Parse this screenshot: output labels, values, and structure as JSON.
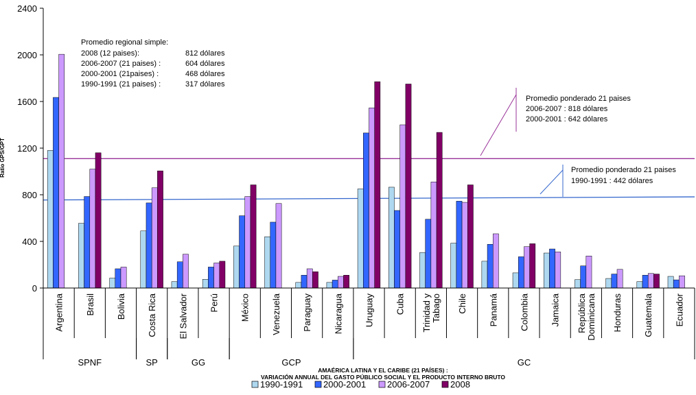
{
  "chart_data": {
    "type": "bar",
    "ylabel": "Ratio GPS/GPT",
    "ylim": [
      0,
      2400
    ],
    "yticks": [
      0,
      400,
      800,
      1200,
      1600,
      2000,
      2400
    ],
    "grid": false,
    "legend_position": "bottom-center",
    "categories": [
      "Argentina",
      "Brasil",
      "Bolivia",
      "Costa Rica",
      "El Salvador",
      "Perú",
      "México",
      "Venezuela",
      "Paraguay",
      "Nicaragua",
      "Uruguay",
      "Cuba",
      "Trinidad y Tabago",
      "Chile",
      "Panamá",
      "Colombia",
      "Jamaica",
      "República Dominicana",
      "Honduras",
      "Guatemala",
      "Ecuador"
    ],
    "series": [
      {
        "name": "1990-1991",
        "color": "#aed8f0",
        "values": [
          1180,
          555,
          85,
          490,
          55,
          75,
          360,
          440,
          48,
          48,
          850,
          865,
          305,
          385,
          230,
          130,
          300,
          72,
          82,
          55,
          100
        ]
      },
      {
        "name": "2000-2001",
        "color": "#3366ff",
        "values": [
          1635,
          785,
          165,
          730,
          225,
          180,
          620,
          565,
          110,
          68,
          1330,
          665,
          590,
          745,
          375,
          268,
          335,
          190,
          120,
          110,
          70
        ]
      },
      {
        "name": "2006-2007",
        "color": "#cc99ff",
        "values": [
          2005,
          1020,
          180,
          860,
          290,
          215,
          785,
          725,
          165,
          100,
          1545,
          1400,
          910,
          735,
          465,
          355,
          310,
          275,
          160,
          125,
          105
        ]
      },
      {
        "name": "2008",
        "color": "#800066",
        "values": [
          null,
          1160,
          null,
          1005,
          null,
          230,
          885,
          null,
          140,
          110,
          1770,
          1750,
          1335,
          885,
          null,
          380,
          null,
          null,
          null,
          120,
          null
        ]
      }
    ],
    "groups": [
      {
        "label": "SPNF",
        "start": 0,
        "end": 2
      },
      {
        "label": "SP",
        "start": 3,
        "end": 3
      },
      {
        "label": "GG",
        "start": 4,
        "end": 5
      },
      {
        "label": "GCP",
        "start": 6,
        "end": 9
      },
      {
        "label": "GC",
        "start": 10,
        "end": 20
      }
    ],
    "reference_lines": [
      {
        "name": "Promedio ponderado 21 paises 2006-2007 / 2000-2001",
        "y_start": 1110,
        "y_end": 1110,
        "color": "#993399"
      },
      {
        "name": "Promedio ponderado 21 paises 1990-1991",
        "y_start": 755,
        "y_end": 782,
        "color": "#3366cc"
      }
    ],
    "annotations": {
      "regional": {
        "title": "Promedio regional simple:",
        "rows": [
          {
            "label": "2008 (12 paises):",
            "value": "812 dólares"
          },
          {
            "label": "2006-2007 (21 paises) :",
            "value": "604 dólares"
          },
          {
            "label": "2000-2001 (21paises) :",
            "value": "468 dólares"
          },
          {
            "label": "1990-1991 (21 paises) :",
            "value": "317 dólares"
          }
        ]
      },
      "weighted_top": {
        "line1": "Promedio ponderado 21 paises",
        "line2": "2006-2007 : 818 dólares",
        "line3": "2000-2001 : 642 dólares"
      },
      "weighted_bottom": {
        "line1": "Promedio ponderado 21 paises",
        "line2": "1990-1991 : 442 dólares"
      }
    },
    "caption": {
      "line1": "AMAÉRICA LATINA Y EL CARIBE (21 PAÍSES) :",
      "line2": "VARIACIÓN ANNUAL DEL GASTO PÚBLICO SOCIAL Y EL PRODUCTO INTERNO BRUTO"
    }
  }
}
